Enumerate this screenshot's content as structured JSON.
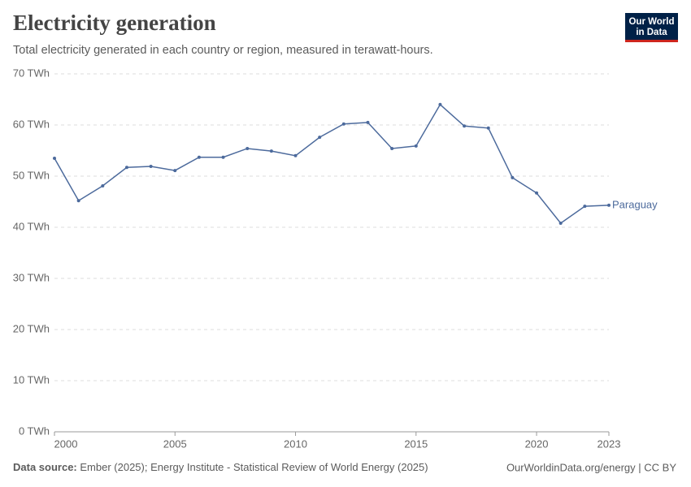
{
  "chart_data": {
    "type": "line",
    "title": "Electricity generation",
    "subtitle": "Total electricity generated in each country or region, measured in terawatt-hours.",
    "logo": [
      "Our World",
      "in Data"
    ],
    "source_label": "Data source:",
    "source": "Ember (2025); Energy Institute - Statistical Review of World Energy (2025)",
    "footer_right": "OurWorldinData.org/energy | CC BY",
    "x": [
      2000,
      2001,
      2002,
      2003,
      2004,
      2005,
      2006,
      2007,
      2008,
      2009,
      2010,
      2011,
      2012,
      2013,
      2014,
      2015,
      2016,
      2017,
      2018,
      2019,
      2020,
      2021,
      2022,
      2023
    ],
    "series": [
      {
        "name": "Paraguay",
        "color": "#4c6a9c",
        "values": [
          53.5,
          45.2,
          48.1,
          51.7,
          51.9,
          51.1,
          53.7,
          53.7,
          55.4,
          54.9,
          54.0,
          57.6,
          60.2,
          60.5,
          55.4,
          55.9,
          64.0,
          59.8,
          59.4,
          49.7,
          46.7,
          40.8,
          44.1,
          44.3
        ]
      }
    ],
    "xlim": [
      2000,
      2023
    ],
    "xticks": [
      2000,
      2005,
      2010,
      2015,
      2020,
      2023
    ],
    "ylim": [
      0,
      70
    ],
    "yticks": [
      {
        "value": 0,
        "label": "0 TWh"
      },
      {
        "value": 10,
        "label": "10 TWh"
      },
      {
        "value": 20,
        "label": "20 TWh"
      },
      {
        "value": 30,
        "label": "30 TWh"
      },
      {
        "value": 40,
        "label": "40 TWh"
      },
      {
        "value": 50,
        "label": "50 TWh"
      },
      {
        "value": 60,
        "label": "60 TWh"
      },
      {
        "value": 70,
        "label": "70 TWh"
      }
    ],
    "grid": true
  }
}
